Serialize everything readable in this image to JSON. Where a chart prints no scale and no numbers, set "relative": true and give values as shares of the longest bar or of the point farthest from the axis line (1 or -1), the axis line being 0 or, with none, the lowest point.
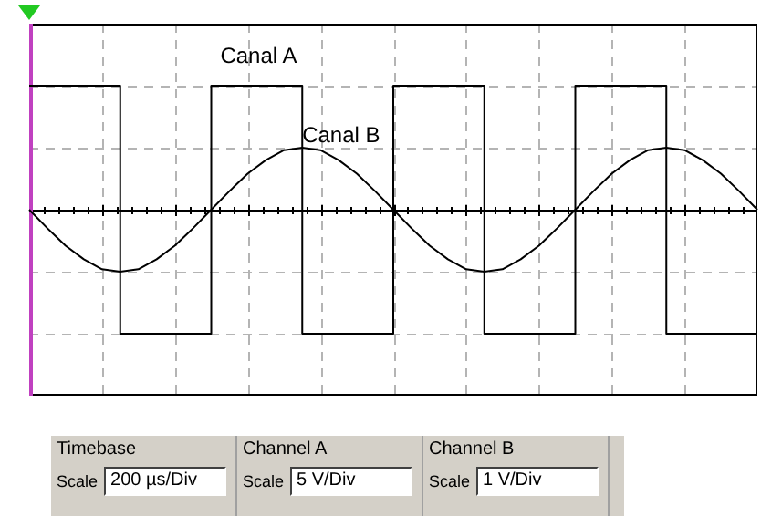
{
  "chart_data": {
    "type": "line",
    "relative": true,
    "grid": true,
    "legend": false,
    "marker": "none",
    "categories": [
      null,
      null,
      null,
      null,
      null,
      null,
      null,
      null,
      null,
      null,
      null,
      null,
      null,
      null,
      null,
      null,
      null,
      null,
      null,
      null,
      null,
      null,
      null,
      null,
      null,
      null,
      null,
      null,
      null,
      null,
      null,
      null,
      null,
      null,
      null,
      null,
      null,
      null,
      null,
      null,
      null
    ],
    "series": [
      {
        "name": "Canal A",
        "type": "step",
        "color": "#000000",
        "values": [
          1,
          1,
          1,
          1,
          1,
          -1,
          -1,
          -1,
          -1,
          -1,
          1,
          1,
          1,
          1,
          1,
          -1,
          -1,
          -1,
          -1,
          -1,
          1,
          1,
          1,
          1,
          1,
          -1,
          -1,
          -1,
          -1,
          -1,
          1,
          1,
          1,
          1,
          1,
          -1,
          -1,
          -1,
          -1,
          -1,
          -1
        ]
      },
      {
        "name": "Canal B",
        "type": "line",
        "color": "#000000",
        "values": [
          0,
          -0.15,
          -0.29,
          -0.4,
          -0.48,
          -0.5,
          -0.48,
          -0.4,
          -0.29,
          -0.15,
          0,
          0.15,
          0.29,
          0.4,
          0.48,
          0.5,
          0.48,
          0.4,
          0.29,
          0.15,
          0,
          -0.15,
          -0.29,
          -0.4,
          -0.48,
          -0.5,
          -0.48,
          -0.4,
          -0.29,
          -0.15,
          0,
          0.15,
          0.29,
          0.4,
          0.48,
          0.5,
          0.48,
          0.4,
          0.29,
          0.15,
          0
        ]
      }
    ],
    "annotations": [
      "Timebase",
      "Scale",
      "200 µs/Div",
      "Channel A",
      "Scale",
      "5 V/Div",
      "Channel B",
      "Scale",
      "1 V/Div"
    ]
  }
}
